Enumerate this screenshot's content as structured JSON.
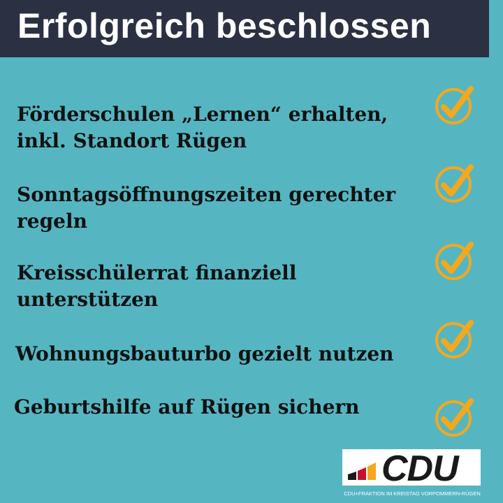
{
  "header": {
    "title": "Erfolgreich beschlossen"
  },
  "items": [
    {
      "label": "Förderschulen „Lernen“ erhalten, inkl. Standort Rügen",
      "icon": "check-circle-icon"
    },
    {
      "label": "Sonntagsöffnungszeiten gerechter regeln",
      "icon": "check-circle-icon"
    },
    {
      "label": "Kreisschülerrat finanziell unterstützen",
      "icon": "check-circle-icon"
    },
    {
      "label": "Wohnungsbauturbo gezielt nutzen",
      "icon": "check-circle-icon"
    },
    {
      "label": "Geburtshilfe auf Rügen sichern",
      "icon": "check-circle-icon"
    }
  ],
  "logo": {
    "text": "CDU",
    "caption": "CDU+FRAKTION IM KREISTAG VORPOMMERN-RÜGEN"
  },
  "colors": {
    "background": "#55b6c2",
    "header": "#2b3043",
    "check": "#f5a81c",
    "logo_black": "#1a1a1a",
    "logo_red": "#c8102e",
    "logo_gold": "#f5a81c"
  }
}
